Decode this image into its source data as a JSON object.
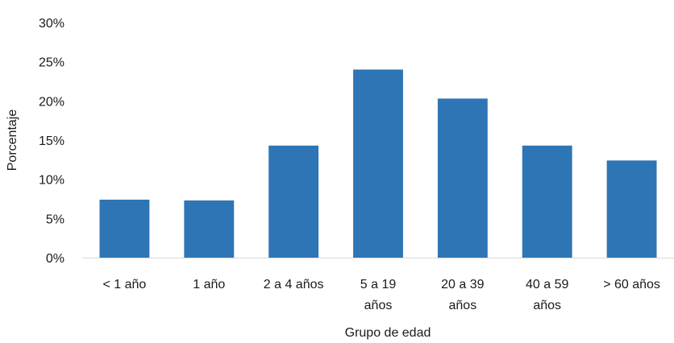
{
  "chart_data": {
    "type": "bar",
    "categories": [
      [
        "< 1 año"
      ],
      [
        "1 año"
      ],
      [
        "2 a 4 años"
      ],
      [
        "5 a 19",
        "años"
      ],
      [
        "20 a 39",
        "años"
      ],
      [
        "40 a 59",
        "años"
      ],
      [
        "> 60 años"
      ]
    ],
    "values": [
      7.4,
      7.3,
      14.3,
      24.0,
      20.3,
      14.3,
      12.4
    ],
    "ylim": [
      0,
      30
    ],
    "yticks": [
      0,
      5,
      10,
      15,
      20,
      25,
      30
    ],
    "ytick_labels": [
      "0%",
      "5%",
      "10%",
      "15%",
      "20%",
      "25%",
      "30%"
    ],
    "xlabel": "Grupo de edad",
    "ylabel": "Porcentaje",
    "grid": false,
    "legend": "none",
    "bar_color": "#2E75B6",
    "axis_color": "#D9D9D9"
  }
}
